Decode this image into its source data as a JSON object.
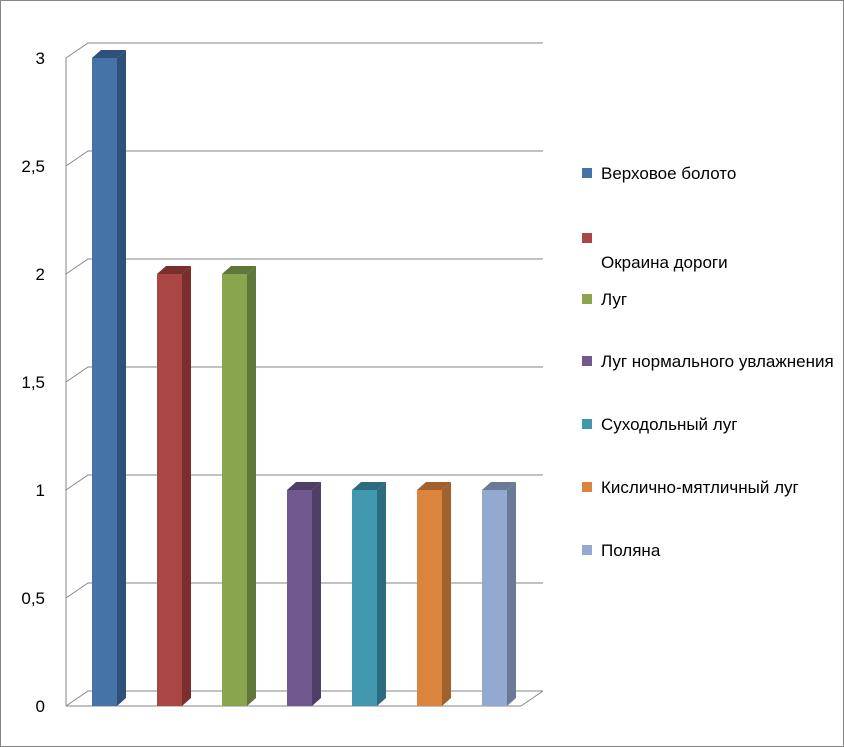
{
  "chart_data": {
    "type": "bar",
    "categories": [
      "Верховое болото",
      "\nОкраина дороги",
      "Луг",
      "Луг нормального увлажнения",
      "Суходольный луг",
      "Кислично-мятличный луг",
      "Поляна"
    ],
    "values": [
      3,
      2,
      2,
      1,
      1,
      1,
      1
    ],
    "colors": [
      "#4573a7",
      "#aa4644",
      "#89a54e",
      "#71588f",
      "#4298af",
      "#db843d",
      "#93a9cf"
    ],
    "side_colors": [
      "#2f5078",
      "#7a2f2d",
      "#61763a",
      "#503e66",
      "#2d6c7e",
      "#a0612d",
      "#6a7a96"
    ],
    "ylim": [
      0,
      3
    ],
    "yticks": [
      0,
      0.5,
      1,
      1.5,
      2,
      2.5,
      3
    ],
    "ytick_labels": [
      "0",
      "0,5",
      "1",
      "1,5",
      "2",
      "2,5",
      "3"
    ],
    "grid": true,
    "legend_position": "right",
    "style": "3d-column"
  }
}
